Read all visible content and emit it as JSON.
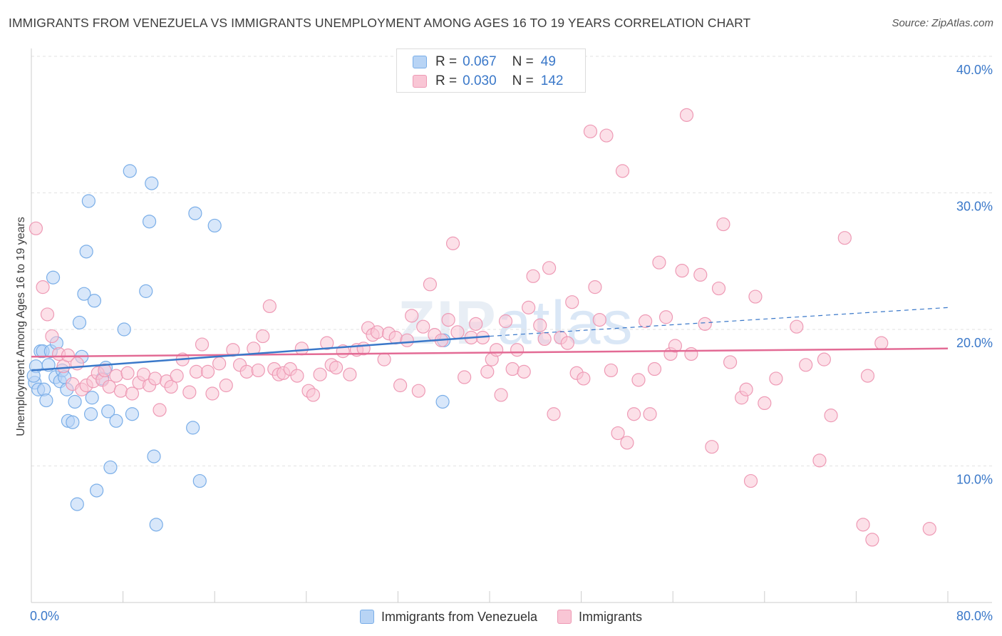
{
  "title": "IMMIGRANTS FROM VENEZUELA VS IMMIGRANTS UNEMPLOYMENT AMONG AGES 16 TO 19 YEARS CORRELATION CHART",
  "source": "Source: ZipAtlas.com",
  "watermark": {
    "bold": "ZIP",
    "light": "atlas"
  },
  "legend_top": [
    {
      "r_label": "R =",
      "r_value": "0.067",
      "n_label": "N =",
      "n_value": "49",
      "color": "blue"
    },
    {
      "r_label": "R =",
      "r_value": "0.030",
      "n_label": "N =",
      "n_value": "142",
      "color": "pink"
    }
  ],
  "colors": {
    "blue_fill": "#b8d4f5",
    "blue_stroke": "#7aaee8",
    "blue_line": "#3a78c9",
    "pink_fill": "#f9c6d5",
    "pink_stroke": "#ee9ab5",
    "pink_line": "#e36b95",
    "tick_label": "#3a78c9",
    "grid": "#e2e2e2"
  },
  "chart_data": {
    "type": "scatter",
    "title": "IMMIGRANTS FROM VENEZUELA VS IMMIGRANTS UNEMPLOYMENT AMONG AGES 16 TO 19 YEARS CORRELATION CHART",
    "xlabel": "",
    "ylabel": "Unemployment Among Ages 16 to 19 years",
    "xlim": [
      0,
      80
    ],
    "ylim": [
      0,
      40
    ],
    "x_tick_labels": [
      "0.0%",
      "80.0%"
    ],
    "y_ticks": [
      10,
      20,
      30,
      40
    ],
    "y_tick_labels": [
      "10.0%",
      "20.0%",
      "30.0%",
      "40.0%"
    ],
    "grid": true,
    "legend_position": "bottom",
    "series": [
      {
        "name": "Immigrants from Venezuela",
        "color": "blue",
        "trend": {
          "x": [
            0,
            40
          ],
          "y": [
            17.0,
            19.5
          ],
          "dashed_extension": {
            "x": [
              40,
              80
            ],
            "y": [
              19.5,
              21.6
            ]
          }
        },
        "points": [
          [
            0.4,
            17.3
          ],
          [
            0.3,
            16.1
          ],
          [
            0.6,
            15.6
          ],
          [
            0.8,
            18.4
          ],
          [
            1.0,
            18.4
          ],
          [
            1.1,
            15.6
          ],
          [
            1.3,
            14.8
          ],
          [
            1.5,
            17.4
          ],
          [
            1.7,
            18.4
          ],
          [
            1.9,
            23.8
          ],
          [
            2.1,
            16.5
          ],
          [
            2.2,
            19.0
          ],
          [
            2.5,
            16.2
          ],
          [
            2.7,
            17.0
          ],
          [
            2.9,
            16.5
          ],
          [
            3.1,
            15.6
          ],
          [
            3.2,
            13.3
          ],
          [
            3.6,
            13.2
          ],
          [
            3.8,
            14.7
          ],
          [
            4.0,
            7.2
          ],
          [
            4.2,
            20.5
          ],
          [
            4.4,
            18.0
          ],
          [
            4.6,
            22.6
          ],
          [
            4.8,
            25.7
          ],
          [
            5.0,
            29.4
          ],
          [
            5.2,
            13.8
          ],
          [
            5.3,
            15.0
          ],
          [
            5.5,
            22.1
          ],
          [
            5.7,
            8.2
          ],
          [
            6.2,
            16.4
          ],
          [
            6.5,
            17.2
          ],
          [
            6.7,
            14.0
          ],
          [
            6.9,
            9.9
          ],
          [
            7.4,
            13.3
          ],
          [
            8.1,
            20.0
          ],
          [
            8.6,
            31.6
          ],
          [
            8.8,
            13.8
          ],
          [
            10.0,
            22.8
          ],
          [
            10.3,
            27.9
          ],
          [
            10.5,
            30.7
          ],
          [
            10.7,
            10.7
          ],
          [
            10.9,
            5.7
          ],
          [
            14.1,
            12.8
          ],
          [
            14.3,
            28.5
          ],
          [
            14.7,
            8.9
          ],
          [
            16.0,
            27.6
          ],
          [
            36.0,
            19.2
          ],
          [
            35.9,
            14.7
          ],
          [
            0.2,
            16.6
          ]
        ]
      },
      {
        "name": "Immigrants",
        "color": "pink",
        "trend": {
          "x": [
            0,
            80
          ],
          "y": [
            18.0,
            18.6
          ]
        },
        "points": [
          [
            0.4,
            27.4
          ],
          [
            1.0,
            23.1
          ],
          [
            1.4,
            21.1
          ],
          [
            1.8,
            19.5
          ],
          [
            2.4,
            18.2
          ],
          [
            2.8,
            17.3
          ],
          [
            3.2,
            18.1
          ],
          [
            3.6,
            16.0
          ],
          [
            4.0,
            17.5
          ],
          [
            4.4,
            15.6
          ],
          [
            4.8,
            15.9
          ],
          [
            5.4,
            16.2
          ],
          [
            5.8,
            16.8
          ],
          [
            6.2,
            16.3
          ],
          [
            6.4,
            17.0
          ],
          [
            6.8,
            15.8
          ],
          [
            7.4,
            16.6
          ],
          [
            7.8,
            15.5
          ],
          [
            8.4,
            16.8
          ],
          [
            8.8,
            15.3
          ],
          [
            9.4,
            16.1
          ],
          [
            9.8,
            16.7
          ],
          [
            10.3,
            15.9
          ],
          [
            10.8,
            16.4
          ],
          [
            11.2,
            14.1
          ],
          [
            11.8,
            16.2
          ],
          [
            12.2,
            15.8
          ],
          [
            12.7,
            16.6
          ],
          [
            13.2,
            17.8
          ],
          [
            13.8,
            15.4
          ],
          [
            14.4,
            16.9
          ],
          [
            14.9,
            18.9
          ],
          [
            15.4,
            16.9
          ],
          [
            15.8,
            15.3
          ],
          [
            16.4,
            17.5
          ],
          [
            17.0,
            15.9
          ],
          [
            17.6,
            18.5
          ],
          [
            18.2,
            17.4
          ],
          [
            18.8,
            16.9
          ],
          [
            19.4,
            18.6
          ],
          [
            19.8,
            17.0
          ],
          [
            20.2,
            19.5
          ],
          [
            20.8,
            21.7
          ],
          [
            21.2,
            17.1
          ],
          [
            21.6,
            16.7
          ],
          [
            22.0,
            16.8
          ],
          [
            22.6,
            17.1
          ],
          [
            23.2,
            16.6
          ],
          [
            23.6,
            18.6
          ],
          [
            24.2,
            15.5
          ],
          [
            24.6,
            15.2
          ],
          [
            25.2,
            16.7
          ],
          [
            25.8,
            19.0
          ],
          [
            26.2,
            17.4
          ],
          [
            26.6,
            17.2
          ],
          [
            27.2,
            18.4
          ],
          [
            27.8,
            16.7
          ],
          [
            28.4,
            18.5
          ],
          [
            29.0,
            18.6
          ],
          [
            29.4,
            20.1
          ],
          [
            29.8,
            19.6
          ],
          [
            30.2,
            19.8
          ],
          [
            30.8,
            17.8
          ],
          [
            31.2,
            19.7
          ],
          [
            31.8,
            19.4
          ],
          [
            32.2,
            15.9
          ],
          [
            32.8,
            19.2
          ],
          [
            33.2,
            21.0
          ],
          [
            33.8,
            15.5
          ],
          [
            34.2,
            20.2
          ],
          [
            34.8,
            23.3
          ],
          [
            35.2,
            19.6
          ],
          [
            35.8,
            19.2
          ],
          [
            36.4,
            20.7
          ],
          [
            36.8,
            26.3
          ],
          [
            37.2,
            19.8
          ],
          [
            37.8,
            16.5
          ],
          [
            38.4,
            19.4
          ],
          [
            38.8,
            20.4
          ],
          [
            39.4,
            19.4
          ],
          [
            39.8,
            16.9
          ],
          [
            40.2,
            17.8
          ],
          [
            40.6,
            18.5
          ],
          [
            41.0,
            15.2
          ],
          [
            41.4,
            20.6
          ],
          [
            42.0,
            17.1
          ],
          [
            42.4,
            18.5
          ],
          [
            43.0,
            16.9
          ],
          [
            43.4,
            21.6
          ],
          [
            43.8,
            23.9
          ],
          [
            44.4,
            20.3
          ],
          [
            44.8,
            19.3
          ],
          [
            45.2,
            24.5
          ],
          [
            45.6,
            13.8
          ],
          [
            46.2,
            19.4
          ],
          [
            46.8,
            19.0
          ],
          [
            47.2,
            22.0
          ],
          [
            47.6,
            16.8
          ],
          [
            48.2,
            16.4
          ],
          [
            48.8,
            34.5
          ],
          [
            49.2,
            23.1
          ],
          [
            49.6,
            20.7
          ],
          [
            50.2,
            34.2
          ],
          [
            50.6,
            17.0
          ],
          [
            51.2,
            12.4
          ],
          [
            51.6,
            31.6
          ],
          [
            52.0,
            11.7
          ],
          [
            52.6,
            13.8
          ],
          [
            53.0,
            16.3
          ],
          [
            53.6,
            20.6
          ],
          [
            54.0,
            13.8
          ],
          [
            54.4,
            17.1
          ],
          [
            54.8,
            24.9
          ],
          [
            55.4,
            20.9
          ],
          [
            55.8,
            18.2
          ],
          [
            56.2,
            18.8
          ],
          [
            56.8,
            24.3
          ],
          [
            57.2,
            35.7
          ],
          [
            57.6,
            18.2
          ],
          [
            58.4,
            24.0
          ],
          [
            58.8,
            20.4
          ],
          [
            59.4,
            11.4
          ],
          [
            60.0,
            23.0
          ],
          [
            60.4,
            27.7
          ],
          [
            61.0,
            17.6
          ],
          [
            62.0,
            15.0
          ],
          [
            62.4,
            15.6
          ],
          [
            62.8,
            8.9
          ],
          [
            63.2,
            22.4
          ],
          [
            64.0,
            14.6
          ],
          [
            65.0,
            16.4
          ],
          [
            66.8,
            20.2
          ],
          [
            67.6,
            17.4
          ],
          [
            68.8,
            10.4
          ],
          [
            69.2,
            17.8
          ],
          [
            69.8,
            13.7
          ],
          [
            71.0,
            26.7
          ],
          [
            72.6,
            5.7
          ],
          [
            73.0,
            16.6
          ],
          [
            73.4,
            4.6
          ],
          [
            74.2,
            19.0
          ],
          [
            78.4,
            5.4
          ]
        ]
      }
    ]
  }
}
